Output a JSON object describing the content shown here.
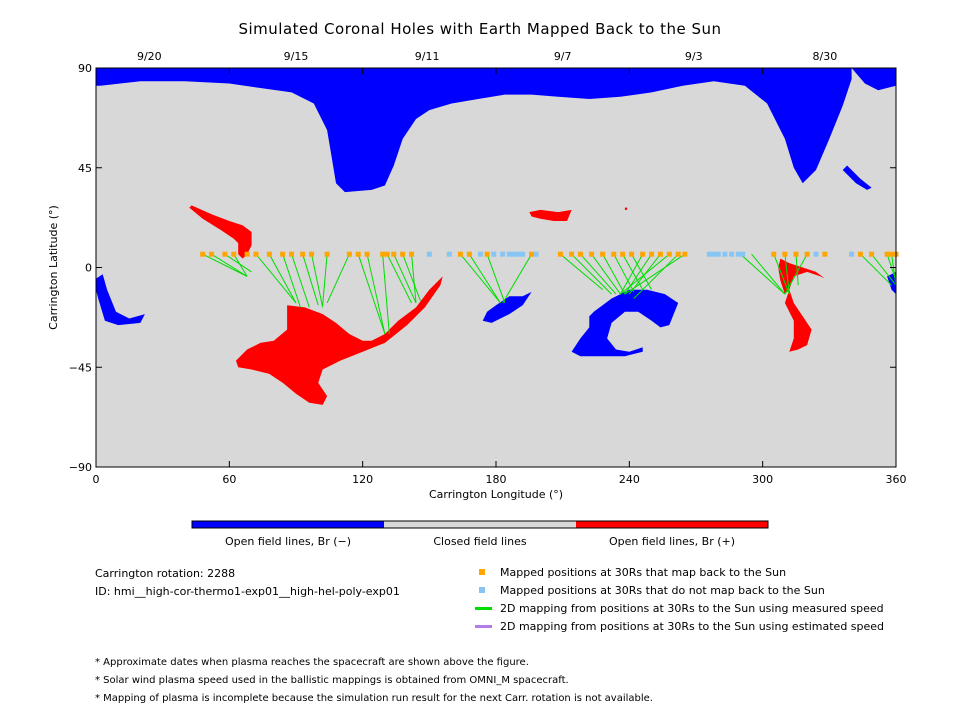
{
  "title": "Simulated Coronal Holes with Earth Mapped Back to the Sun",
  "chart_data": {
    "type": "scatter",
    "title": "Simulated Coronal Holes with Earth Mapped Back to the Sun",
    "xlabel": "Carrington Longitude (°)",
    "ylabel": "Carrington Latitude (°)",
    "xlim": [
      0,
      360
    ],
    "ylim": [
      -90,
      90
    ],
    "x_ticks": [
      0,
      60,
      120,
      180,
      240,
      300,
      360
    ],
    "y_ticks": [
      90,
      45,
      0,
      -45,
      -90
    ],
    "top_date_ticks": [
      {
        "lon": 24,
        "label": "9/20"
      },
      {
        "lon": 90,
        "label": "9/15"
      },
      {
        "lon": 149,
        "label": "9/11"
      },
      {
        "lon": 210,
        "label": "9/7"
      },
      {
        "lon": 269,
        "label": "9/3"
      },
      {
        "lon": 328,
        "label": "8/30"
      }
    ],
    "colors": {
      "closed": "#d8d8d8",
      "open_neg": "#0000ff",
      "open_pos": "#ff0000",
      "mapped": "#ffa500",
      "not_mapped": "#87c6f4",
      "measured_line": "#00dd00",
      "estimated_line": "#b37ce6"
    },
    "regions": [
      {
        "name": "north-polar-hole",
        "polarity": "neg",
        "points": [
          [
            0,
            90
          ],
          [
            360,
            90
          ],
          [
            360,
            82
          ],
          [
            352,
            80
          ],
          [
            346,
            83
          ],
          [
            340,
            90
          ],
          [
            340,
            85
          ],
          [
            336,
            73
          ],
          [
            330,
            58
          ],
          [
            324,
            44
          ],
          [
            318,
            38
          ],
          [
            314,
            45
          ],
          [
            310,
            58
          ],
          [
            302,
            74
          ],
          [
            292,
            82
          ],
          [
            278,
            84
          ],
          [
            264,
            82
          ],
          [
            250,
            79
          ],
          [
            236,
            77
          ],
          [
            222,
            76
          ],
          [
            208,
            77
          ],
          [
            196,
            78
          ],
          [
            184,
            78
          ],
          [
            172,
            76
          ],
          [
            160,
            74
          ],
          [
            150,
            71
          ],
          [
            144,
            67
          ],
          [
            138,
            58
          ],
          [
            134,
            46
          ],
          [
            130,
            37
          ],
          [
            124,
            35
          ],
          [
            112,
            34
          ],
          [
            108,
            38
          ],
          [
            106,
            50
          ],
          [
            104,
            62
          ],
          [
            98,
            74
          ],
          [
            88,
            79
          ],
          [
            74,
            81
          ],
          [
            60,
            83
          ],
          [
            40,
            84
          ],
          [
            20,
            84
          ],
          [
            2,
            82
          ],
          [
            0,
            82
          ]
        ]
      },
      {
        "name": "north-hole-tail",
        "polarity": "neg",
        "points": [
          [
            336,
            44
          ],
          [
            342,
            38
          ],
          [
            347,
            35
          ],
          [
            349,
            36
          ],
          [
            344,
            40
          ],
          [
            338,
            46
          ]
        ]
      },
      {
        "name": "blue-west-edge",
        "polarity": "neg",
        "points": [
          [
            0,
            -5
          ],
          [
            3,
            -3
          ],
          [
            5,
            -10
          ],
          [
            9,
            -20
          ],
          [
            15,
            -23
          ],
          [
            22,
            -21
          ],
          [
            20,
            -25
          ],
          [
            10,
            -26
          ],
          [
            4,
            -24
          ],
          [
            1,
            -14
          ],
          [
            0,
            -10
          ]
        ]
      },
      {
        "name": "blue-east-edge",
        "polarity": "neg",
        "points": [
          [
            360,
            -2
          ],
          [
            356,
            -4
          ],
          [
            358,
            -10
          ],
          [
            360,
            -12
          ]
        ]
      },
      {
        "name": "blue-180-hole",
        "polarity": "neg",
        "points": [
          [
            176,
            -20
          ],
          [
            180,
            -17
          ],
          [
            186,
            -13
          ],
          [
            192,
            -13
          ],
          [
            196,
            -11
          ],
          [
            192,
            -17
          ],
          [
            186,
            -21
          ],
          [
            178,
            -25
          ],
          [
            174,
            -24
          ]
        ]
      },
      {
        "name": "blue-240-hole",
        "polarity": "neg",
        "points": [
          [
            224,
            -20
          ],
          [
            232,
            -14
          ],
          [
            240,
            -10
          ],
          [
            248,
            -10
          ],
          [
            256,
            -12
          ],
          [
            262,
            -16
          ],
          [
            258,
            -26
          ],
          [
            254,
            -27
          ],
          [
            250,
            -24
          ],
          [
            244,
            -20
          ],
          [
            238,
            -20
          ],
          [
            232,
            -25
          ],
          [
            230,
            -32
          ],
          [
            234,
            -37
          ],
          [
            240,
            -38
          ],
          [
            246,
            -36
          ],
          [
            246,
            -38
          ],
          [
            238,
            -40
          ],
          [
            228,
            -40
          ],
          [
            218,
            -40
          ],
          [
            214,
            -38
          ],
          [
            218,
            -32
          ],
          [
            222,
            -27
          ],
          [
            222,
            -22
          ]
        ]
      },
      {
        "name": "red-north-streak",
        "polarity": "pos",
        "points": [
          [
            43,
            28
          ],
          [
            52,
            24
          ],
          [
            60,
            21
          ],
          [
            66,
            19
          ],
          [
            70,
            16
          ],
          [
            70,
            10
          ],
          [
            68,
            6
          ],
          [
            66,
            4
          ],
          [
            64,
            6
          ],
          [
            64,
            11
          ],
          [
            62,
            13
          ],
          [
            56,
            17
          ],
          [
            48,
            22
          ],
          [
            42,
            27
          ]
        ]
      },
      {
        "name": "red-north-patch",
        "polarity": "pos",
        "points": [
          [
            195,
            25
          ],
          [
            200,
            26
          ],
          [
            208,
            25
          ],
          [
            214,
            26
          ],
          [
            212,
            21
          ],
          [
            206,
            21
          ],
          [
            200,
            22
          ],
          [
            196,
            23
          ]
        ]
      },
      {
        "name": "red-dot",
        "polarity": "pos",
        "points": [
          [
            238,
            27
          ],
          [
            239,
            27
          ],
          [
            239,
            26
          ],
          [
            238,
            26
          ]
        ]
      },
      {
        "name": "red-big-hole",
        "polarity": "pos",
        "points": [
          [
            86,
            -17
          ],
          [
            94,
            -18
          ],
          [
            102,
            -21
          ],
          [
            108,
            -25
          ],
          [
            114,
            -30
          ],
          [
            120,
            -33
          ],
          [
            124,
            -33
          ],
          [
            130,
            -30
          ],
          [
            136,
            -24
          ],
          [
            144,
            -18
          ],
          [
            150,
            -10
          ],
          [
            156,
            -4
          ],
          [
            155,
            -8
          ],
          [
            148,
            -18
          ],
          [
            140,
            -26
          ],
          [
            130,
            -34
          ],
          [
            120,
            -38
          ],
          [
            110,
            -42
          ],
          [
            102,
            -46
          ],
          [
            100,
            -52
          ],
          [
            104,
            -58
          ],
          [
            102,
            -62
          ],
          [
            96,
            -61
          ],
          [
            90,
            -57
          ],
          [
            84,
            -52
          ],
          [
            78,
            -48
          ],
          [
            70,
            -46
          ],
          [
            64,
            -45
          ],
          [
            63,
            -42
          ],
          [
            68,
            -37
          ],
          [
            74,
            -34
          ],
          [
            80,
            -33
          ],
          [
            86,
            -28
          ],
          [
            86,
            -22
          ]
        ]
      },
      {
        "name": "red-300-upper",
        "polarity": "pos",
        "points": [
          [
            308,
            4
          ],
          [
            312,
            2
          ],
          [
            318,
            0
          ],
          [
            324,
            -2
          ],
          [
            328,
            -5
          ],
          [
            326,
            -4
          ],
          [
            320,
            -2
          ],
          [
            314,
            -4
          ],
          [
            312,
            -10
          ],
          [
            310,
            -12
          ],
          [
            308,
            -6
          ],
          [
            307,
            0
          ]
        ]
      },
      {
        "name": "red-300-lower",
        "polarity": "pos",
        "points": [
          [
            312,
            -10
          ],
          [
            314,
            -16
          ],
          [
            318,
            -22
          ],
          [
            322,
            -28
          ],
          [
            320,
            -35
          ],
          [
            316,
            -37
          ],
          [
            312,
            -38
          ],
          [
            314,
            -32
          ],
          [
            314,
            -24
          ],
          [
            310,
            -16
          ]
        ]
      }
    ],
    "mapped_longitudes": [
      48,
      52,
      58,
      62,
      68,
      72,
      78,
      84,
      88,
      93,
      97,
      104,
      114,
      118,
      122,
      129,
      131,
      134,
      138,
      142,
      164,
      168,
      176,
      196,
      209,
      214,
      218,
      223,
      228,
      233,
      237,
      241,
      246,
      250,
      254,
      258,
      262,
      265,
      305,
      310,
      315,
      320,
      328,
      344,
      349,
      356,
      358,
      360
    ],
    "not_mapped_longitudes": [
      150,
      159,
      173,
      179,
      183,
      186,
      188,
      190,
      192,
      198,
      276,
      278,
      280,
      283,
      286,
      289,
      291,
      324,
      340
    ],
    "measured_lines": [
      [
        48,
        6,
        68,
        -4
      ],
      [
        52,
        6,
        68,
        -4
      ],
      [
        58,
        6,
        70,
        -2
      ],
      [
        62,
        6,
        68,
        -4
      ],
      [
        72,
        6,
        90,
        -16
      ],
      [
        78,
        6,
        90,
        -16
      ],
      [
        84,
        6,
        92,
        -18
      ],
      [
        88,
        6,
        96,
        -18
      ],
      [
        93,
        6,
        100,
        -17
      ],
      [
        97,
        6,
        102,
        -18
      ],
      [
        104,
        6,
        102,
        -17
      ],
      [
        114,
        6,
        104,
        -16
      ],
      [
        118,
        6,
        130,
        -30
      ],
      [
        122,
        6,
        130,
        -30
      ],
      [
        129,
        6,
        132,
        -30
      ],
      [
        131,
        6,
        142,
        -16
      ],
      [
        134,
        6,
        144,
        -16
      ],
      [
        138,
        6,
        146,
        -15
      ],
      [
        142,
        6,
        144,
        -16
      ],
      [
        164,
        6,
        182,
        -16
      ],
      [
        168,
        6,
        182,
        -16
      ],
      [
        176,
        6,
        184,
        -16
      ],
      [
        196,
        6,
        183,
        -16
      ],
      [
        209,
        6,
        228,
        -10
      ],
      [
        214,
        6,
        232,
        -12
      ],
      [
        218,
        6,
        234,
        -12
      ],
      [
        223,
        6,
        236,
        -12
      ],
      [
        228,
        6,
        238,
        -12
      ],
      [
        233,
        6,
        242,
        -11
      ],
      [
        237,
        6,
        246,
        -10
      ],
      [
        241,
        6,
        250,
        -10
      ],
      [
        246,
        6,
        236,
        -12
      ],
      [
        250,
        6,
        238,
        -12
      ],
      [
        254,
        6,
        240,
        -12
      ],
      [
        258,
        6,
        236,
        -12
      ],
      [
        262,
        6,
        242,
        -14
      ],
      [
        265,
        6,
        238,
        -12
      ],
      [
        290,
        6,
        310,
        -12
      ],
      [
        295,
        6,
        310,
        -12
      ],
      [
        305,
        6,
        312,
        -12
      ],
      [
        310,
        6,
        312,
        -12
      ],
      [
        315,
        6,
        316,
        -8
      ],
      [
        320,
        6,
        310,
        -12
      ],
      [
        344,
        6,
        358,
        -8
      ],
      [
        349,
        6,
        360,
        -8
      ],
      [
        356,
        6,
        360,
        -6
      ],
      [
        358,
        6,
        360,
        -8
      ]
    ],
    "colorbar": {
      "labels": [
        "Open field lines, Br (−)",
        "Closed field lines",
        "Open field lines, Br (+)"
      ]
    },
    "legend": {
      "mapped": "Mapped positions at 30Rs that map back to the Sun",
      "not_mapped": "Mapped positions at 30Rs that do not map back to the Sun",
      "measured": "2D mapping from positions at 30Rs to the Sun using measured speed",
      "estimated": "2D mapping from positions at 30Rs to the Sun using estimated speed"
    }
  },
  "info": {
    "rotation": "Carrington rotation: 2288",
    "id": "ID: hmi__high-cor-thermo1-exp01__high-hel-poly-exp01"
  },
  "notes": [
    "* Approximate dates when plasma reaches the spacecraft are shown above the figure.",
    "* Solar wind plasma speed used in the ballistic mappings is obtained from OMNI_M spacecraft.",
    "* Mapping of plasma is incomplete because the simulation run result for the next Carr. rotation is not available."
  ]
}
